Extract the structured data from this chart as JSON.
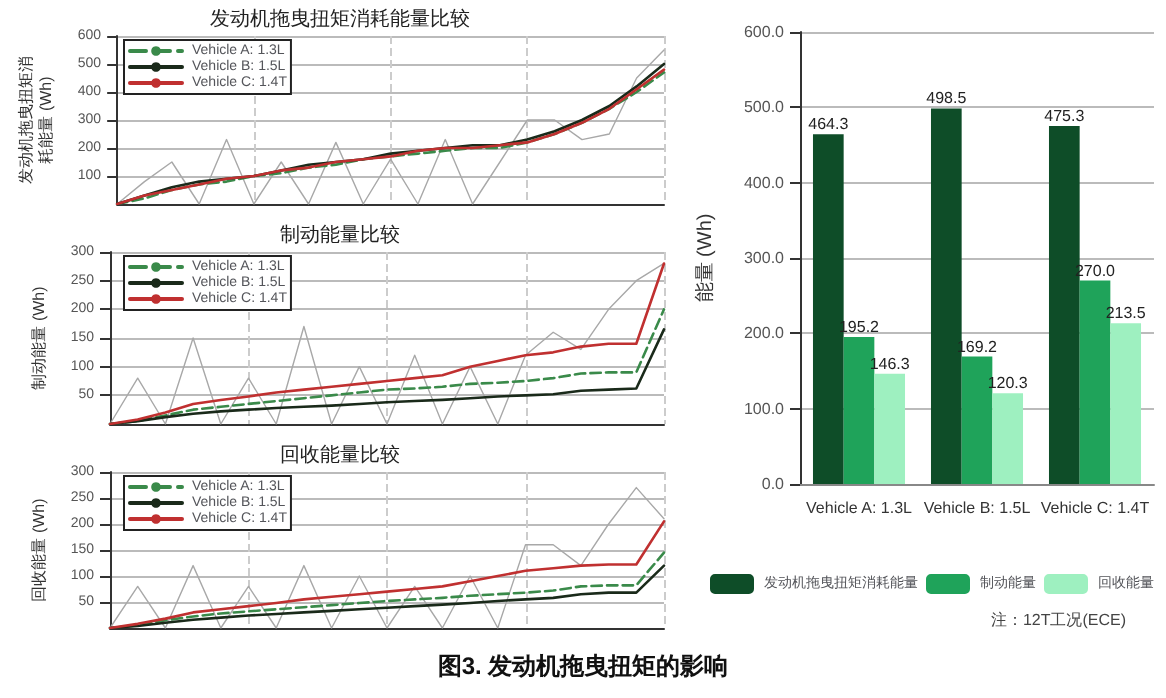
{
  "chart_data": [
    {
      "type": "line",
      "title": "发动机拖曳扭矩消耗能量比较",
      "ylabel": "发动机拖曳扭矩消耗能量 (Wh)",
      "categories": [
        null,
        null,
        null,
        null,
        null,
        null,
        null,
        null,
        null,
        null,
        null,
        null,
        null,
        null,
        null,
        null,
        null,
        null,
        null,
        null,
        null
      ],
      "ylim": [
        0,
        600
      ],
      "yticks": [
        100,
        200,
        300,
        400,
        500,
        600
      ],
      "grid": true,
      "legend": "top left",
      "tick_labels": "y",
      "marker": "none",
      "series": [
        {
          "name": "Vehicle A: 1.3L",
          "color": "#3a8a4a",
          "line_style": "dashed",
          "values": [
            0,
            20,
            50,
            70,
            80,
            100,
            110,
            130,
            140,
            160,
            170,
            180,
            190,
            200,
            200,
            220,
            250,
            290,
            340,
            400,
            470
          ]
        },
        {
          "name": "Vehicle B: 1.5L",
          "color": "#1a2a1a",
          "line_style": "solid",
          "values": [
            0,
            30,
            60,
            80,
            90,
            100,
            120,
            140,
            150,
            160,
            180,
            190,
            200,
            210,
            210,
            230,
            260,
            300,
            350,
            420,
            500
          ]
        },
        {
          "name": "Vehicle C: 1.4T",
          "color": "#c03030",
          "line_style": "solid",
          "values": [
            0,
            30,
            50,
            70,
            90,
            100,
            120,
            130,
            150,
            160,
            170,
            190,
            200,
            200,
            210,
            220,
            250,
            290,
            340,
            410,
            480
          ]
        },
        {
          "color": "#a8a8a8",
          "line_style": "solid",
          "values": [
            0,
            80,
            150,
            0,
            230,
            0,
            150,
            0,
            220,
            0,
            160,
            0,
            230,
            0,
            150,
            300,
            300,
            230,
            250,
            450,
            550
          ]
        }
      ]
    },
    {
      "type": "line",
      "title": "制动能量比较",
      "ylabel": "制动能量 (Wh)",
      "categories": [
        null,
        null,
        null,
        null,
        null,
        null,
        null,
        null,
        null,
        null,
        null,
        null,
        null,
        null,
        null,
        null,
        null,
        null,
        null,
        null,
        null
      ],
      "ylim": [
        0,
        300
      ],
      "yticks": [
        50,
        100,
        150,
        200,
        250,
        300
      ],
      "grid": true,
      "legend": "top left",
      "tick_labels": "y",
      "marker": "none",
      "series": [
        {
          "name": "Vehicle A: 1.3L",
          "color": "#3a8a4a",
          "line_style": "dashed",
          "values": [
            0,
            5,
            15,
            25,
            30,
            35,
            40,
            45,
            50,
            55,
            60,
            62,
            65,
            70,
            72,
            75,
            80,
            88,
            90,
            90,
            200
          ]
        },
        {
          "name": "Vehicle B: 1.5L",
          "color": "#1a2a1a",
          "line_style": "solid",
          "values": [
            0,
            5,
            12,
            18,
            22,
            25,
            28,
            30,
            32,
            35,
            38,
            40,
            42,
            45,
            48,
            50,
            52,
            58,
            60,
            62,
            165
          ]
        },
        {
          "name": "Vehicle C: 1.4T",
          "color": "#c03030",
          "line_style": "solid",
          "values": [
            0,
            8,
            20,
            35,
            42,
            48,
            55,
            60,
            65,
            70,
            75,
            80,
            85,
            100,
            110,
            120,
            125,
            135,
            140,
            140,
            280
          ]
        },
        {
          "color": "#a8a8a8",
          "line_style": "solid",
          "values": [
            0,
            80,
            0,
            150,
            0,
            80,
            0,
            170,
            0,
            100,
            0,
            120,
            0,
            100,
            0,
            120,
            160,
            130,
            200,
            250,
            280
          ]
        }
      ]
    },
    {
      "type": "line",
      "title": "回收能量比较",
      "ylabel": "回收能量 (Wh)",
      "categories": [
        null,
        null,
        null,
        null,
        null,
        null,
        null,
        null,
        null,
        null,
        null,
        null,
        null,
        null,
        null,
        null,
        null,
        null,
        null,
        null,
        null
      ],
      "ylim": [
        0,
        300
      ],
      "yticks": [
        50,
        100,
        150,
        200,
        250,
        300
      ],
      "grid": true,
      "legend": "top left",
      "tick_labels": "y",
      "marker": "none",
      "annotations": [
        "图3. 发动机拖曳扭矩的影响"
      ],
      "series": [
        {
          "name": "Vehicle A: 1.3L",
          "color": "#3a8a4a",
          "line_style": "dashed",
          "values": [
            0,
            5,
            15,
            22,
            28,
            32,
            36,
            40,
            44,
            48,
            52,
            55,
            58,
            62,
            65,
            68,
            72,
            80,
            82,
            82,
            145
          ]
        },
        {
          "name": "Vehicle B: 1.5L",
          "color": "#1a2a1a",
          "line_style": "solid",
          "values": [
            0,
            4,
            10,
            16,
            20,
            24,
            27,
            30,
            33,
            36,
            39,
            42,
            45,
            48,
            52,
            55,
            58,
            65,
            68,
            68,
            120
          ]
        },
        {
          "name": "Vehicle C: 1.4T",
          "color": "#c03030",
          "line_style": "solid",
          "values": [
            0,
            8,
            18,
            30,
            36,
            42,
            48,
            55,
            60,
            65,
            70,
            75,
            80,
            90,
            100,
            110,
            115,
            120,
            122,
            122,
            205
          ]
        },
        {
          "color": "#a8a8a8",
          "line_style": "solid",
          "values": [
            0,
            80,
            0,
            120,
            0,
            80,
            0,
            120,
            0,
            100,
            0,
            80,
            0,
            100,
            0,
            160,
            160,
            120,
            200,
            270,
            210
          ]
        }
      ]
    },
    {
      "type": "bar",
      "ylabel": "能量 (Wh)",
      "categories": [
        "Vehicle A: 1.3L",
        "Vehicle B: 1.5L",
        "Vehicle C: 1.4T"
      ],
      "ylim": [
        0,
        600
      ],
      "yticks": [
        {
          "value": 0,
          "label": "0.0"
        },
        {
          "value": 100,
          "label": "100.0"
        },
        {
          "value": 200,
          "label": "200.0"
        },
        {
          "value": 300,
          "label": "300.0"
        },
        {
          "value": 400,
          "label": "400.0"
        },
        {
          "value": 500,
          "label": "500.0"
        },
        {
          "value": 600,
          "label": "600.0"
        }
      ],
      "grid": "y",
      "legend": "bottom",
      "annotations": [
        "注：12T工况(ECE)"
      ],
      "series": [
        {
          "name": "发动机拖曳扭矩消耗能量",
          "color": "#0e4d28",
          "values": [
            464.3,
            498.5,
            475.3
          ],
          "value_labels": [
            "464.3",
            "498.5",
            "475.3"
          ]
        },
        {
          "name": "制动能量",
          "color": "#1fa35a",
          "values": [
            195.2,
            169.2,
            270.0
          ],
          "value_labels": [
            "195.2",
            "169.2",
            "270.0"
          ]
        },
        {
          "name": "回收能量",
          "color": "#9ef0c0",
          "values": [
            146.3,
            120.3,
            213.5
          ],
          "value_labels": [
            "146.3",
            "120.3",
            "213.5"
          ]
        }
      ]
    }
  ]
}
